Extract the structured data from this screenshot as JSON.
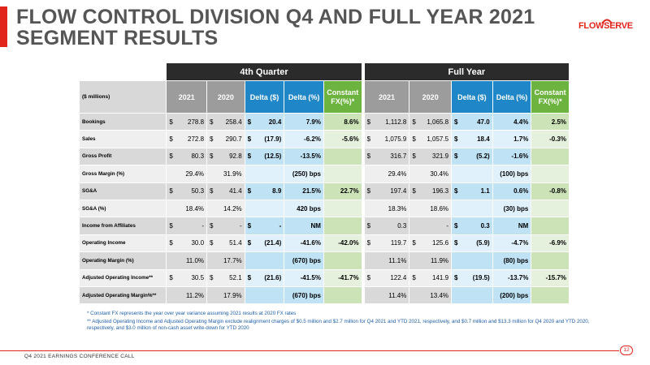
{
  "slide": {
    "title": "FLOW CONTROL DIVISION Q4 AND FULL YEAR 2021 SEGMENT RESULTS",
    "logo": "FLOWSERVE",
    "footer": "Q4 2021 EARNINGS CONFERENCE CALL",
    "page_number": "12",
    "brand_color": "#e1251b"
  },
  "table": {
    "group_q4": "4th Quarter",
    "group_fy": "Full Year",
    "units_label": "($ millions)",
    "headers": {
      "y2021": "2021",
      "y2020": "2020",
      "delta_dollar": "Delta ($)",
      "delta_pct": "Delta (%)",
      "constant_fx_1": "Constant",
      "constant_fx_2": "FX(%)*"
    },
    "rows": [
      {
        "label": "Bookings",
        "q4": [
          "$",
          "278.8",
          "$",
          "258.4",
          "$",
          "20.4",
          "7.9%",
          "8.6%"
        ],
        "fy": [
          "$",
          "1,112.8",
          "$",
          "1,065.8",
          "$",
          "47.0",
          "4.4%",
          "2.5%"
        ]
      },
      {
        "label": "Sales",
        "q4": [
          "$",
          "272.8",
          "$",
          "290.7",
          "$",
          "(17.9)",
          "-6.2%",
          "-5.6%"
        ],
        "fy": [
          "$",
          "1,075.9",
          "$",
          "1,057.5",
          "$",
          "18.4",
          "1.7%",
          "-0.3%"
        ]
      },
      {
        "label": "Gross Profit",
        "q4": [
          "$",
          "80.3",
          "$",
          "92.8",
          "$",
          "(12.5)",
          "-13.5%",
          ""
        ],
        "fy": [
          "$",
          "316.7",
          "$",
          "321.9",
          "$",
          "(5.2)",
          "-1.6%",
          ""
        ]
      },
      {
        "label": "Gross Margin (%)",
        "q4": [
          "",
          "29.4%",
          "",
          "31.9%",
          "",
          "",
          "(250) bps",
          ""
        ],
        "fy": [
          "",
          "29.4%",
          "",
          "30.4%",
          "",
          "",
          "(100) bps",
          ""
        ]
      },
      {
        "label": "SG&A",
        "q4": [
          "$",
          "50.3",
          "$",
          "41.4",
          "$",
          "8.9",
          "21.5%",
          "22.7%"
        ],
        "fy": [
          "$",
          "197.4",
          "$",
          "196.3",
          "$",
          "1.1",
          "0.6%",
          "-0.8%"
        ]
      },
      {
        "label": "SG&A (%)",
        "q4": [
          "",
          "18.4%",
          "",
          "14.2%",
          "",
          "",
          "420 bps",
          ""
        ],
        "fy": [
          "",
          "18.3%",
          "",
          "18.6%",
          "",
          "",
          "(30) bps",
          ""
        ]
      },
      {
        "label": "Income from Affiliates",
        "q4": [
          "$",
          "-",
          "$",
          "-",
          "$",
          "-",
          "NM",
          ""
        ],
        "fy": [
          "$",
          "0.3",
          "",
          "-",
          "$",
          "0.3",
          "NM",
          ""
        ]
      },
      {
        "label": "Operating Income",
        "q4": [
          "$",
          "30.0",
          "$",
          "51.4",
          "$",
          "(21.4)",
          "-41.6%",
          "-42.0%"
        ],
        "fy": [
          "$",
          "119.7",
          "$",
          "125.6",
          "$",
          "(5.9)",
          "-4.7%",
          "-6.9%"
        ]
      },
      {
        "label": "Operating Margin (%)",
        "q4": [
          "",
          "11.0%",
          "",
          "17.7%",
          "",
          "",
          "(670) bps",
          ""
        ],
        "fy": [
          "",
          "11.1%",
          "",
          "11.9%",
          "",
          "",
          "(80) bps",
          ""
        ]
      },
      {
        "label": "Adjusted Operating Income**",
        "q4": [
          "$",
          "30.5",
          "$",
          "52.1",
          "$",
          "(21.6)",
          "-41.5%",
          "-41.7%"
        ],
        "fy": [
          "$",
          "122.4",
          "$",
          "141.9",
          "$",
          "(19.5)",
          "-13.7%",
          "-15.7%"
        ]
      },
      {
        "label": "Adjusted Operating Margin%**",
        "q4": [
          "",
          "11.2%",
          "",
          "17.9%",
          "",
          "",
          "(670) bps",
          ""
        ],
        "fy": [
          "",
          "11.4%",
          "",
          "13.4%",
          "",
          "",
          "(200) bps",
          ""
        ]
      }
    ]
  },
  "notes": {
    "note1": "* Constant FX represents the year over year variance assuming 2021 results at 2020 FX rates",
    "note2": "** Adjusted Operating Income and Adjusted Operating Margin exclude realignment charges of $0.5 million and $2.7 million for Q4 2021 and YTD 2021, respectively, and $0.7 million and $13.3 million for Q4 2020 and YTD 2020, respectively, and $3.0 million of non-cash asset write-down for YTD 2020"
  }
}
